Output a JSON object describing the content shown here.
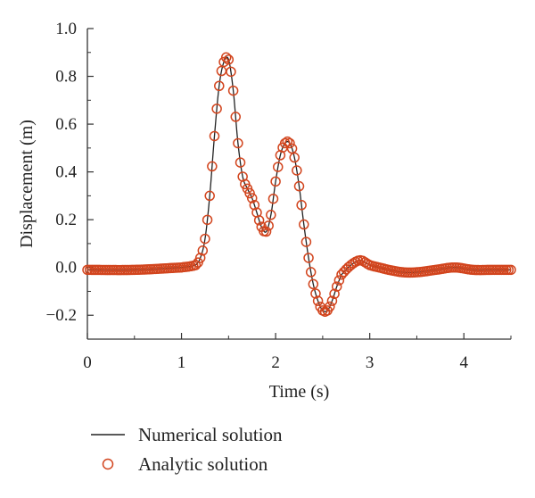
{
  "chart_data": {
    "type": "line",
    "xlabel": "Time (s)",
    "ylabel": "Displacement (m)",
    "xlim": [
      0,
      4.5
    ],
    "ylim": [
      -0.3,
      1.0
    ],
    "x_ticks": [
      "0",
      "1",
      "2",
      "3",
      "4"
    ],
    "y_ticks": [
      "−0.2",
      "0.0",
      "0.2",
      "0.4",
      "0.6",
      "0.8",
      "1.0"
    ],
    "x_tick_values": [
      0,
      1,
      2,
      3,
      4
    ],
    "y_tick_values": [
      -0.2,
      0.0,
      0.2,
      0.4,
      0.6,
      0.8,
      1.0
    ],
    "grid": false,
    "legend_position": "bottom-left, below plot",
    "series": [
      {
        "name": "Numerical solution",
        "style": "line",
        "color": "#222222"
      },
      {
        "name": "Analytic solution",
        "style": "open-circle",
        "color": "#d2451e"
      }
    ],
    "x": [
      0.0,
      0.5,
      1.0,
      1.15,
      1.2,
      1.25,
      1.3,
      1.35,
      1.4,
      1.45,
      1.5,
      1.55,
      1.6,
      1.65,
      1.7,
      1.75,
      1.8,
      1.85,
      1.9,
      1.95,
      2.0,
      2.05,
      2.1,
      2.15,
      2.2,
      2.25,
      2.3,
      2.35,
      2.4,
      2.45,
      2.5,
      2.55,
      2.6,
      2.65,
      2.7,
      2.8,
      2.9,
      3.0,
      3.1,
      3.2,
      3.35,
      3.5,
      3.7,
      3.9,
      4.1,
      4.3,
      4.5
    ],
    "values": [
      -0.01,
      -0.01,
      0.0,
      0.01,
      0.04,
      0.12,
      0.3,
      0.55,
      0.76,
      0.86,
      0.87,
      0.74,
      0.52,
      0.38,
      0.33,
      0.29,
      0.23,
      0.17,
      0.15,
      0.22,
      0.36,
      0.47,
      0.52,
      0.52,
      0.46,
      0.34,
      0.18,
      0.04,
      -0.07,
      -0.14,
      -0.18,
      -0.18,
      -0.14,
      -0.08,
      -0.03,
      0.01,
      0.03,
      0.01,
      0.0,
      -0.01,
      -0.02,
      -0.02,
      -0.01,
      0.0,
      -0.01,
      -0.01,
      -0.01
    ]
  },
  "colors": {
    "marker": "#d2451e",
    "line": "#222222",
    "axis": "#333333"
  }
}
